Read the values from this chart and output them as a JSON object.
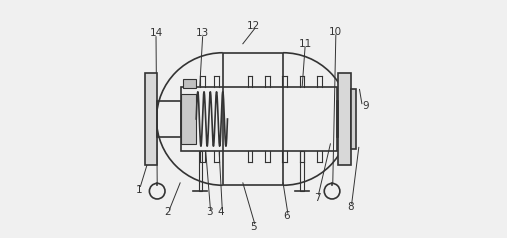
{
  "bg_color": "#f0f0f0",
  "line_color": "#333333",
  "lw": 1.2,
  "lw2": 0.8,
  "fig_width": 5.07,
  "fig_height": 2.38,
  "fs": 7.5
}
